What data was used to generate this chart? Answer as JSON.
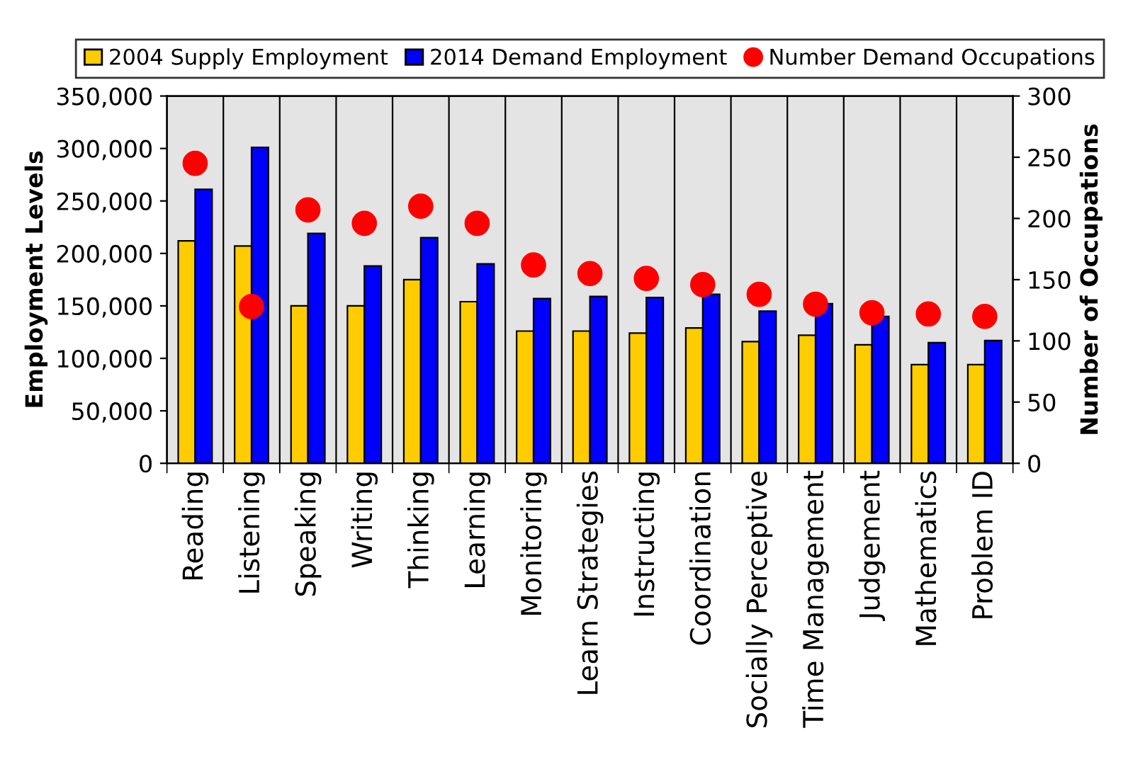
{
  "chart_data": {
    "type": "bar",
    "categories": [
      "Reading",
      "Listening",
      "Speaking",
      "Writing",
      "Thinking",
      "Learning",
      "Monitoring",
      "Learn Strategies",
      "Instructing",
      "Coordination",
      "Socially Perceptive",
      "Time Management",
      "Judgement",
      "Mathematics",
      "Problem ID"
    ],
    "series": [
      {
        "name": "2004 Supply Employment",
        "color": "#ffcc00",
        "values": [
          212000,
          207000,
          150000,
          150000,
          175000,
          154000,
          126000,
          126000,
          124000,
          129000,
          116000,
          122000,
          113000,
          94000,
          94000
        ]
      },
      {
        "name": "2014 Demand Employment",
        "color": "#0000ff",
        "values": [
          261000,
          301000,
          219000,
          188000,
          215000,
          190000,
          157000,
          159000,
          158000,
          161000,
          145000,
          152000,
          140000,
          115000,
          117000
        ]
      },
      {
        "name": "Number Demand Occupations",
        "color": "#ff0000",
        "type": "scatter",
        "axis": "y2",
        "marker": "circle",
        "values": [
          245,
          128,
          207,
          196,
          210,
          196,
          162,
          155,
          151,
          146,
          138,
          130,
          123,
          122,
          120
        ]
      }
    ],
    "ylabel": "Employment Levels",
    "y2label": "Number of Occupations",
    "ylim": [
      0,
      350000
    ],
    "yticks": [
      {
        "value": 0,
        "label": "0"
      },
      {
        "value": 50000,
        "label": "50,000"
      },
      {
        "value": 100000,
        "label": "100,000"
      },
      {
        "value": 150000,
        "label": "150,000"
      },
      {
        "value": 200000,
        "label": "200,000"
      },
      {
        "value": 250000,
        "label": "250,000"
      },
      {
        "value": 300000,
        "label": "300,000"
      },
      {
        "value": 350000,
        "label": "350,000"
      }
    ],
    "y2lim": [
      0,
      300
    ],
    "y2ticks": [
      0,
      50,
      100,
      150,
      200,
      250,
      300
    ],
    "grid": "x",
    "legend": "top"
  }
}
